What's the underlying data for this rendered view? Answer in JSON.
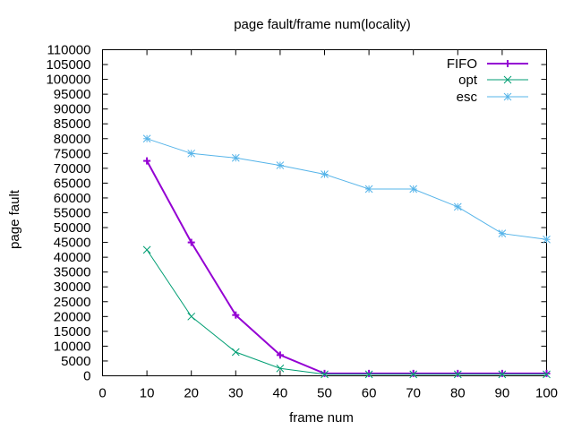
{
  "chart_data": {
    "type": "line",
    "title": "page fault/frame num(locality)",
    "xlabel": "frame num",
    "ylabel": "page fault",
    "xlim": [
      0,
      100
    ],
    "ylim": [
      0,
      110000
    ],
    "x_ticks": [
      "0",
      "10",
      "20",
      "30",
      "40",
      "50",
      "60",
      "70",
      "80",
      "90",
      "100"
    ],
    "y_ticks": [
      "0",
      "5000",
      "10000",
      "15000",
      "20000",
      "25000",
      "30000",
      "35000",
      "40000",
      "45000",
      "50000",
      "55000",
      "60000",
      "65000",
      "70000",
      "75000",
      "80000",
      "85000",
      "90000",
      "95000",
      "100000",
      "105000",
      "110000"
    ],
    "grid": false,
    "legend_position": "top-right",
    "x": [
      10,
      20,
      30,
      40,
      50,
      60,
      70,
      80,
      90,
      100
    ],
    "series": [
      {
        "name": "FIFO",
        "color": "#9400d3",
        "marker": "plus",
        "values": [
          72500,
          45000,
          20500,
          7000,
          800,
          800,
          800,
          800,
          800,
          800
        ]
      },
      {
        "name": "opt",
        "color": "#009e73",
        "marker": "cross",
        "values": [
          42500,
          20000,
          8000,
          2500,
          500,
          500,
          500,
          500,
          500,
          500
        ]
      },
      {
        "name": "esc",
        "color": "#56b4e9",
        "marker": "star",
        "values": [
          80000,
          75000,
          73500,
          71000,
          68000,
          63000,
          63000,
          57000,
          48000,
          46000
        ]
      }
    ]
  }
}
